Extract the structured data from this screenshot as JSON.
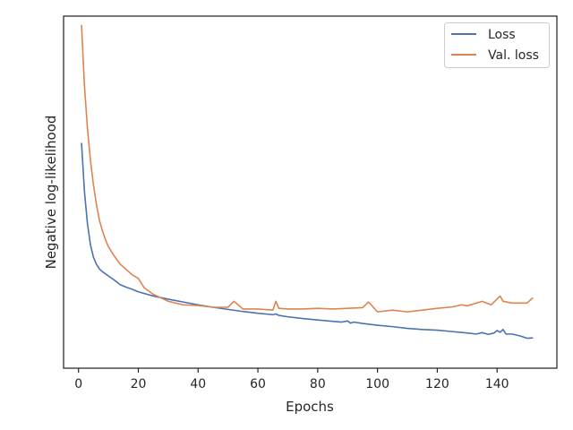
{
  "chart_data": {
    "type": "line",
    "title": "",
    "xlabel": "Epochs",
    "ylabel": "Negative log-likelihood",
    "xlim": [
      -5,
      160
    ],
    "ylim": [
      0,
      1
    ],
    "xticks": [
      0,
      20,
      40,
      60,
      80,
      100,
      120,
      140
    ],
    "yticks_visible": false,
    "grid": false,
    "legend_position": "top-right",
    "colors": {
      "Loss": "#4c72b0",
      "Val. loss": "#dd8452",
      "axes": "#262626"
    },
    "series": [
      {
        "name": "Loss",
        "x": [
          1,
          2,
          3,
          4,
          5,
          6,
          7,
          8,
          9,
          10,
          12,
          14,
          16,
          18,
          20,
          25,
          30,
          35,
          40,
          45,
          50,
          55,
          60,
          65,
          66,
          67,
          70,
          75,
          80,
          85,
          88,
          90,
          91,
          92,
          95,
          100,
          105,
          110,
          115,
          120,
          125,
          130,
          133,
          135,
          137,
          139,
          140,
          141,
          142,
          143,
          145,
          148,
          150,
          152
        ],
        "y": [
          0.64,
          0.5,
          0.41,
          0.35,
          0.315,
          0.295,
          0.282,
          0.274,
          0.268,
          0.262,
          0.25,
          0.237,
          0.23,
          0.224,
          0.217,
          0.205,
          0.196,
          0.188,
          0.18,
          0.173,
          0.167,
          0.161,
          0.156,
          0.152,
          0.154,
          0.15,
          0.146,
          0.141,
          0.137,
          0.133,
          0.131,
          0.134,
          0.128,
          0.131,
          0.127,
          0.122,
          0.118,
          0.113,
          0.11,
          0.108,
          0.104,
          0.1,
          0.097,
          0.101,
          0.096,
          0.1,
          0.107,
          0.102,
          0.11,
          0.097,
          0.097,
          0.091,
          0.085,
          0.086
        ]
      },
      {
        "name": "Val. loss",
        "x": [
          1,
          2,
          3,
          4,
          5,
          6,
          7,
          8,
          9,
          10,
          12,
          14,
          16,
          18,
          20,
          22,
          25,
          28,
          30,
          35,
          40,
          45,
          50,
          52,
          55,
          60,
          65,
          66,
          67,
          70,
          75,
          80,
          85,
          90,
          95,
          97,
          100,
          105,
          110,
          115,
          120,
          125,
          128,
          130,
          135,
          138,
          141,
          142,
          145,
          150,
          152
        ],
        "y": [
          0.975,
          0.8,
          0.68,
          0.59,
          0.52,
          0.465,
          0.42,
          0.39,
          0.365,
          0.345,
          0.318,
          0.295,
          0.28,
          0.265,
          0.255,
          0.228,
          0.21,
          0.198,
          0.19,
          0.18,
          0.178,
          0.173,
          0.173,
          0.19,
          0.168,
          0.168,
          0.165,
          0.19,
          0.17,
          0.168,
          0.168,
          0.17,
          0.168,
          0.17,
          0.172,
          0.188,
          0.16,
          0.165,
          0.16,
          0.165,
          0.17,
          0.174,
          0.18,
          0.177,
          0.19,
          0.18,
          0.205,
          0.19,
          0.185,
          0.185,
          0.2
        ]
      }
    ]
  }
}
